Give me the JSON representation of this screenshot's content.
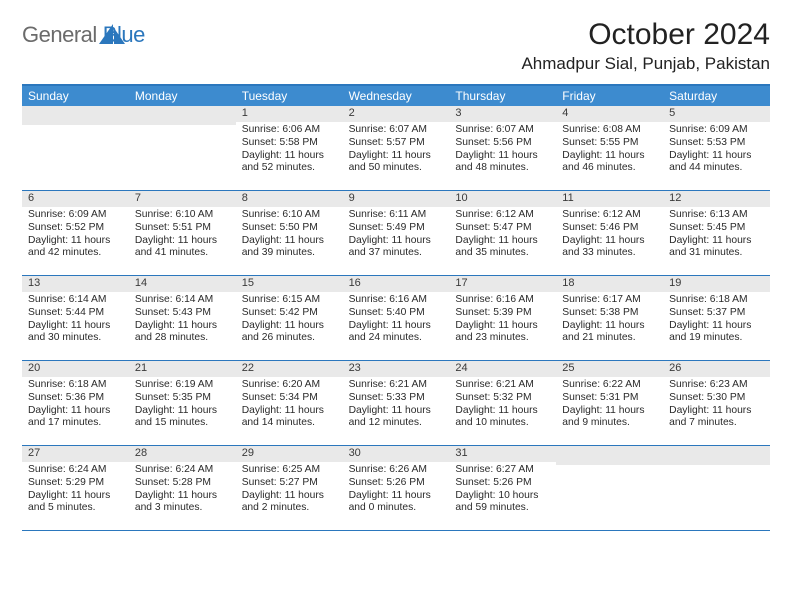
{
  "brand": {
    "part1": "General",
    "part2": "Blue"
  },
  "title": "October 2024",
  "location": "Ahmadpur Sial, Punjab, Pakistan",
  "colors": {
    "header_bg": "#3d8bcf",
    "header_text": "#ffffff",
    "week_divider": "#2b77bd",
    "daynum_bg": "#e9e9e9",
    "logo_gray": "#6b6b6b",
    "logo_blue": "#2b77bd"
  },
  "dow": [
    "Sunday",
    "Monday",
    "Tuesday",
    "Wednesday",
    "Thursday",
    "Friday",
    "Saturday"
  ],
  "weeks": [
    [
      {
        "n": "",
        "sunrise": "",
        "sunset": "",
        "daylight": ""
      },
      {
        "n": "",
        "sunrise": "",
        "sunset": "",
        "daylight": ""
      },
      {
        "n": "1",
        "sunrise": "Sunrise: 6:06 AM",
        "sunset": "Sunset: 5:58 PM",
        "daylight": "Daylight: 11 hours and 52 minutes."
      },
      {
        "n": "2",
        "sunrise": "Sunrise: 6:07 AM",
        "sunset": "Sunset: 5:57 PM",
        "daylight": "Daylight: 11 hours and 50 minutes."
      },
      {
        "n": "3",
        "sunrise": "Sunrise: 6:07 AM",
        "sunset": "Sunset: 5:56 PM",
        "daylight": "Daylight: 11 hours and 48 minutes."
      },
      {
        "n": "4",
        "sunrise": "Sunrise: 6:08 AM",
        "sunset": "Sunset: 5:55 PM",
        "daylight": "Daylight: 11 hours and 46 minutes."
      },
      {
        "n": "5",
        "sunrise": "Sunrise: 6:09 AM",
        "sunset": "Sunset: 5:53 PM",
        "daylight": "Daylight: 11 hours and 44 minutes."
      }
    ],
    [
      {
        "n": "6",
        "sunrise": "Sunrise: 6:09 AM",
        "sunset": "Sunset: 5:52 PM",
        "daylight": "Daylight: 11 hours and 42 minutes."
      },
      {
        "n": "7",
        "sunrise": "Sunrise: 6:10 AM",
        "sunset": "Sunset: 5:51 PM",
        "daylight": "Daylight: 11 hours and 41 minutes."
      },
      {
        "n": "8",
        "sunrise": "Sunrise: 6:10 AM",
        "sunset": "Sunset: 5:50 PM",
        "daylight": "Daylight: 11 hours and 39 minutes."
      },
      {
        "n": "9",
        "sunrise": "Sunrise: 6:11 AM",
        "sunset": "Sunset: 5:49 PM",
        "daylight": "Daylight: 11 hours and 37 minutes."
      },
      {
        "n": "10",
        "sunrise": "Sunrise: 6:12 AM",
        "sunset": "Sunset: 5:47 PM",
        "daylight": "Daylight: 11 hours and 35 minutes."
      },
      {
        "n": "11",
        "sunrise": "Sunrise: 6:12 AM",
        "sunset": "Sunset: 5:46 PM",
        "daylight": "Daylight: 11 hours and 33 minutes."
      },
      {
        "n": "12",
        "sunrise": "Sunrise: 6:13 AM",
        "sunset": "Sunset: 5:45 PM",
        "daylight": "Daylight: 11 hours and 31 minutes."
      }
    ],
    [
      {
        "n": "13",
        "sunrise": "Sunrise: 6:14 AM",
        "sunset": "Sunset: 5:44 PM",
        "daylight": "Daylight: 11 hours and 30 minutes."
      },
      {
        "n": "14",
        "sunrise": "Sunrise: 6:14 AM",
        "sunset": "Sunset: 5:43 PM",
        "daylight": "Daylight: 11 hours and 28 minutes."
      },
      {
        "n": "15",
        "sunrise": "Sunrise: 6:15 AM",
        "sunset": "Sunset: 5:42 PM",
        "daylight": "Daylight: 11 hours and 26 minutes."
      },
      {
        "n": "16",
        "sunrise": "Sunrise: 6:16 AM",
        "sunset": "Sunset: 5:40 PM",
        "daylight": "Daylight: 11 hours and 24 minutes."
      },
      {
        "n": "17",
        "sunrise": "Sunrise: 6:16 AM",
        "sunset": "Sunset: 5:39 PM",
        "daylight": "Daylight: 11 hours and 23 minutes."
      },
      {
        "n": "18",
        "sunrise": "Sunrise: 6:17 AM",
        "sunset": "Sunset: 5:38 PM",
        "daylight": "Daylight: 11 hours and 21 minutes."
      },
      {
        "n": "19",
        "sunrise": "Sunrise: 6:18 AM",
        "sunset": "Sunset: 5:37 PM",
        "daylight": "Daylight: 11 hours and 19 minutes."
      }
    ],
    [
      {
        "n": "20",
        "sunrise": "Sunrise: 6:18 AM",
        "sunset": "Sunset: 5:36 PM",
        "daylight": "Daylight: 11 hours and 17 minutes."
      },
      {
        "n": "21",
        "sunrise": "Sunrise: 6:19 AM",
        "sunset": "Sunset: 5:35 PM",
        "daylight": "Daylight: 11 hours and 15 minutes."
      },
      {
        "n": "22",
        "sunrise": "Sunrise: 6:20 AM",
        "sunset": "Sunset: 5:34 PM",
        "daylight": "Daylight: 11 hours and 14 minutes."
      },
      {
        "n": "23",
        "sunrise": "Sunrise: 6:21 AM",
        "sunset": "Sunset: 5:33 PM",
        "daylight": "Daylight: 11 hours and 12 minutes."
      },
      {
        "n": "24",
        "sunrise": "Sunrise: 6:21 AM",
        "sunset": "Sunset: 5:32 PM",
        "daylight": "Daylight: 11 hours and 10 minutes."
      },
      {
        "n": "25",
        "sunrise": "Sunrise: 6:22 AM",
        "sunset": "Sunset: 5:31 PM",
        "daylight": "Daylight: 11 hours and 9 minutes."
      },
      {
        "n": "26",
        "sunrise": "Sunrise: 6:23 AM",
        "sunset": "Sunset: 5:30 PM",
        "daylight": "Daylight: 11 hours and 7 minutes."
      }
    ],
    [
      {
        "n": "27",
        "sunrise": "Sunrise: 6:24 AM",
        "sunset": "Sunset: 5:29 PM",
        "daylight": "Daylight: 11 hours and 5 minutes."
      },
      {
        "n": "28",
        "sunrise": "Sunrise: 6:24 AM",
        "sunset": "Sunset: 5:28 PM",
        "daylight": "Daylight: 11 hours and 3 minutes."
      },
      {
        "n": "29",
        "sunrise": "Sunrise: 6:25 AM",
        "sunset": "Sunset: 5:27 PM",
        "daylight": "Daylight: 11 hours and 2 minutes."
      },
      {
        "n": "30",
        "sunrise": "Sunrise: 6:26 AM",
        "sunset": "Sunset: 5:26 PM",
        "daylight": "Daylight: 11 hours and 0 minutes."
      },
      {
        "n": "31",
        "sunrise": "Sunrise: 6:27 AM",
        "sunset": "Sunset: 5:26 PM",
        "daylight": "Daylight: 10 hours and 59 minutes."
      },
      {
        "n": "",
        "sunrise": "",
        "sunset": "",
        "daylight": ""
      },
      {
        "n": "",
        "sunrise": "",
        "sunset": "",
        "daylight": ""
      }
    ]
  ]
}
